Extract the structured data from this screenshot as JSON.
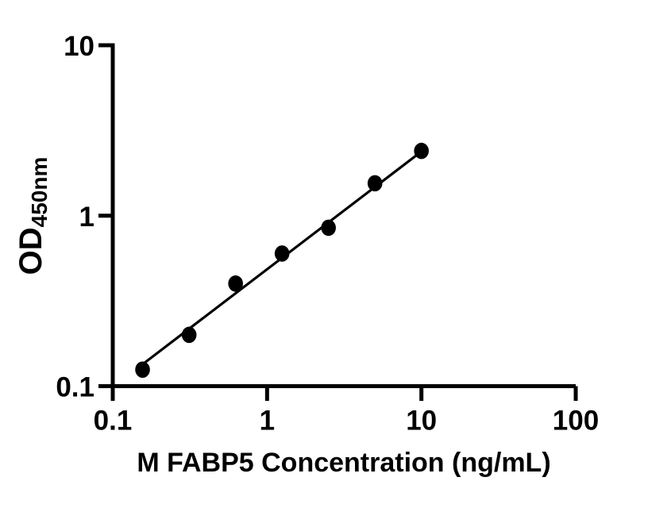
{
  "figure": {
    "background": "#ffffff",
    "axis_color": "#000000"
  },
  "chart_data": {
    "type": "scatter",
    "title": "",
    "xlabel": "M FABP5 Concentration (ng/mL)",
    "ylabel_main": "OD",
    "ylabel_sub": "450nm",
    "x_scale": "log",
    "y_scale": "log",
    "xlim": [
      0.1,
      100
    ],
    "ylim": [
      0.1,
      10
    ],
    "x_tick_values": [
      0.1,
      1,
      10,
      100
    ],
    "x_tick_labels": [
      "0.1",
      "1",
      "10",
      "100"
    ],
    "y_tick_values": [
      10,
      1,
      0.1
    ],
    "y_tick_labels": [
      "10",
      "1",
      "0.1"
    ],
    "grid": false,
    "legend": "none",
    "marker_color": "#000000",
    "line_color": "#000000",
    "points": [
      {
        "x": 0.156,
        "y": 0.125
      },
      {
        "x": 0.3125,
        "y": 0.2
      },
      {
        "x": 0.625,
        "y": 0.4
      },
      {
        "x": 1.25,
        "y": 0.6
      },
      {
        "x": 2.5,
        "y": 0.85
      },
      {
        "x": 5,
        "y": 1.55
      },
      {
        "x": 10,
        "y": 2.4
      }
    ],
    "fit_line": {
      "x1": 0.152,
      "y1": 0.132,
      "x2": 9.94,
      "y2": 2.37
    }
  }
}
